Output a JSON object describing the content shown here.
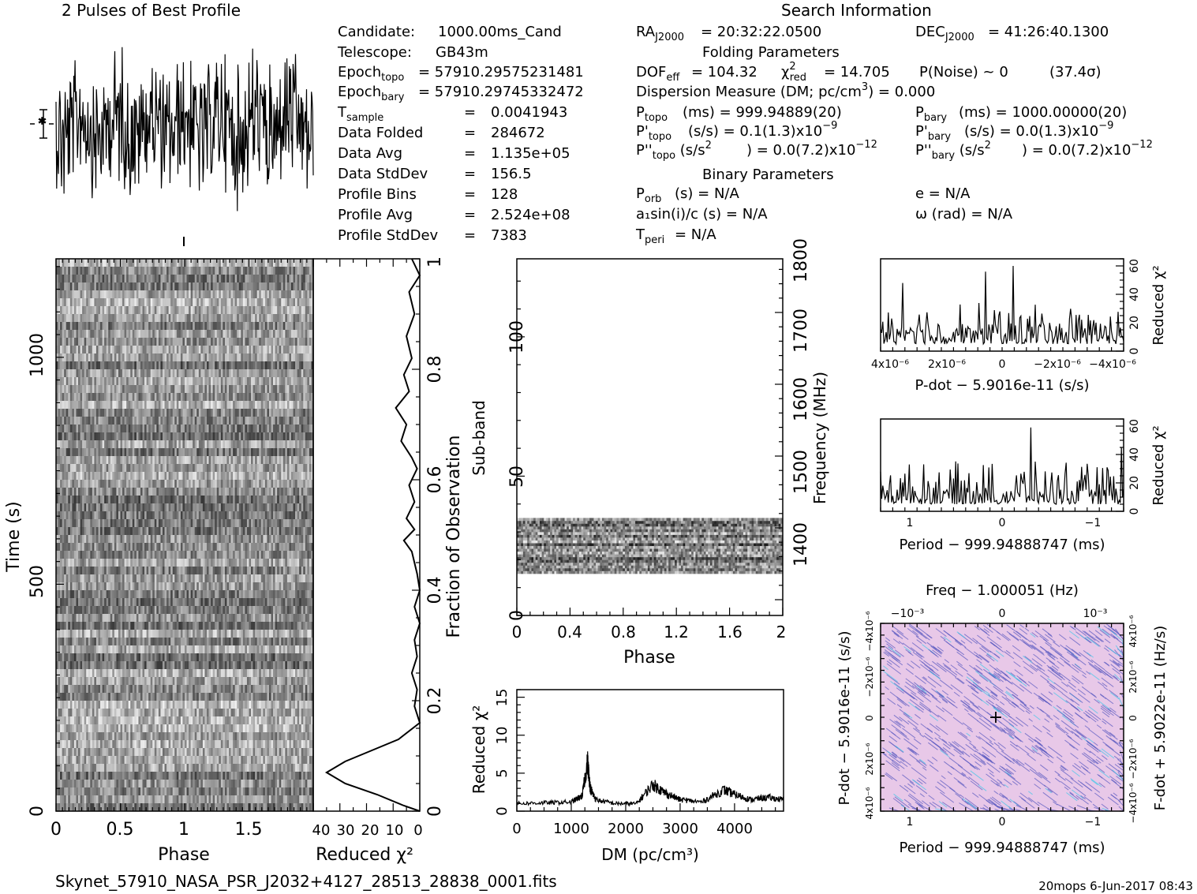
{
  "header": {
    "profile_title": "2 Pulses of Best Profile",
    "search_title": "Search Information",
    "folding_title": "Folding Parameters",
    "binary_title": "Binary Parameters"
  },
  "info_left": {
    "candidate_label": "Candidate:",
    "candidate": "1000.00ms_Cand",
    "telescope_label": "Telescope:",
    "telescope": "GB43m",
    "epoch_topo": "= 57910.29575231481",
    "epoch_bary": "= 57910.29745332472",
    "tsample": "0.0041943",
    "data_folded": "284672",
    "data_avg": "1.135e+05",
    "data_stddev": "156.5",
    "profile_bins": "128",
    "profile_avg": "2.524e+08",
    "profile_stddev": "7383",
    "lbl_data_folded": "Data Folded",
    "lbl_data_avg": "Data Avg",
    "lbl_data_stddev": "Data StdDev",
    "lbl_profile_bins": "Profile Bins",
    "lbl_profile_avg": "Profile Avg",
    "lbl_profile_stddev": "Profile StdDev"
  },
  "info_mid": {
    "ra": "= 20:32:22.0500",
    "dof": "= 104.32",
    "chi2red": "= 14.705",
    "pnoise": "P(Noise) ~ 0",
    "sigma": "(37.4σ)",
    "dm": "Dispersion Measure (DM; pc/cm",
    "dm_val": ") = 0.000",
    "ptopo": "(ms) =  999.94889(20)",
    "pdtopo": "(s/s) =  0.1(1.3)x10",
    "pdtopo_exp": "−9",
    "pddtopo": ") = 0.0(7.2)x10",
    "pddtopo_exp": "−12",
    "porb": "(s) = N/A",
    "a1sini": "a₁sin(i)/c (s) = N/A",
    "tperi": "= N/A"
  },
  "info_right": {
    "dec": "= 41:26:40.1300",
    "pbary": "(ms) =  1000.00000(20)",
    "pdbary": "(s/s) = 0.0(1.3)x10",
    "pdbary_exp": "−9",
    "pddbary": ") = 0.0(7.2)x10",
    "pddbary_exp": "−12",
    "ecc": "e = N/A",
    "omega": "ω (rad) = N/A"
  },
  "footer": {
    "filename": "Skynet_57910_NASA_PSR_J2032+4127_28513_28838_0001.fits",
    "stamp": "20mops  6-Jun-2017 08:43"
  },
  "chart_data": [
    {
      "type": "line",
      "name": "profile",
      "title": "2 Pulses of Best Profile",
      "note": "noisy folded profile over 2 pulses, no clear peak"
    },
    {
      "type": "heatmap",
      "name": "time_vs_phase",
      "xlabel": "Phase",
      "ylabel": "Time (s)",
      "xticks": [
        "0",
        "0.5",
        "1",
        "1.5"
      ],
      "yticks": [
        "0",
        "500",
        "1000"
      ],
      "xlim": [
        0,
        2
      ],
      "ylim": [
        0,
        1217
      ]
    },
    {
      "type": "line",
      "name": "time_reduced_chi2",
      "xlabel": "Reduced χ²",
      "ylabel": "Fraction of Observation",
      "xticks": [
        "40",
        "30",
        "20",
        "10",
        "0"
      ],
      "yticks": [
        "0",
        "0.2",
        "0.4",
        "0.6",
        "0.8",
        "1"
      ],
      "xlim": [
        40,
        0
      ],
      "ylim": [
        0,
        1
      ],
      "points": [
        [
          3,
          1.0
        ],
        [
          0,
          0.97
        ],
        [
          4,
          0.94
        ],
        [
          2,
          0.9
        ],
        [
          5,
          0.86
        ],
        [
          3,
          0.82
        ],
        [
          6,
          0.79
        ],
        [
          4,
          0.76
        ],
        [
          9,
          0.73
        ],
        [
          5,
          0.7
        ],
        [
          7,
          0.67
        ],
        [
          3,
          0.64
        ],
        [
          1,
          0.62
        ],
        [
          4,
          0.59
        ],
        [
          2,
          0.56
        ],
        [
          5,
          0.53
        ],
        [
          2,
          0.51
        ],
        [
          6,
          0.49
        ],
        [
          3,
          0.47
        ],
        [
          1,
          0.43
        ],
        [
          0,
          0.4
        ],
        [
          2,
          0.37
        ],
        [
          0,
          0.34
        ],
        [
          2,
          0.31
        ],
        [
          1,
          0.28
        ],
        [
          3,
          0.25
        ],
        [
          1,
          0.22
        ],
        [
          2,
          0.19
        ],
        [
          0,
          0.16
        ],
        [
          8,
          0.13
        ],
        [
          18,
          0.11
        ],
        [
          28,
          0.09
        ],
        [
          35,
          0.07
        ],
        [
          28,
          0.05
        ],
        [
          16,
          0.03
        ],
        [
          6,
          0.01
        ],
        [
          0,
          0
        ]
      ]
    },
    {
      "type": "heatmap",
      "name": "subband_vs_phase",
      "xlabel": "Phase",
      "ylabel": "Sub-band",
      "y2label": "Frequency (MHz)",
      "xticks": [
        "0",
        "0.4",
        "0.8",
        "1.2",
        "1.6",
        "2"
      ],
      "yticks": [
        "0",
        "50",
        "100"
      ],
      "y2ticks": [
        "1400",
        "1500",
        "1600",
        "1700",
        "1800"
      ],
      "xlim": [
        0,
        2
      ],
      "ylim": [
        0,
        128
      ],
      "filled_subbands": [
        15,
        35
      ]
    },
    {
      "type": "line",
      "name": "dm_reduced_chi2",
      "xlabel": "DM (pc/cm³)",
      "ylabel": "Reduced χ²",
      "xticks": [
        "0",
        "1000",
        "2000",
        "3000",
        "4000"
      ],
      "yticks": [
        "0",
        "5",
        "10",
        "15"
      ],
      "xlim": [
        0,
        4900
      ],
      "ylim": [
        0,
        16
      ],
      "points": [
        [
          0,
          1
        ],
        [
          500,
          1.1
        ],
        [
          1000,
          1.2
        ],
        [
          1200,
          2
        ],
        [
          1300,
          6.5
        ],
        [
          1350,
          3
        ],
        [
          1450,
          1.5
        ],
        [
          1800,
          1
        ],
        [
          2200,
          1
        ],
        [
          2500,
          3.5
        ],
        [
          2700,
          2.5
        ],
        [
          3000,
          1.5
        ],
        [
          3400,
          1.2
        ],
        [
          3800,
          2.8
        ],
        [
          4000,
          2.2
        ],
        [
          4300,
          1.5
        ],
        [
          4600,
          1.8
        ],
        [
          4900,
          1.5
        ]
      ]
    },
    {
      "type": "line",
      "name": "pdot_reduced_chi2",
      "xlabel": "P-dot − 5.9016e-11 (s/s)",
      "ylabel": "Reduced χ²",
      "xticks": [
        "4x10⁻⁶",
        "2x10⁻⁶",
        "0",
        "−2x10⁻⁶",
        "−4x10⁻⁶"
      ],
      "yticks": [
        "0",
        "20",
        "40",
        "60"
      ],
      "ylim": [
        0,
        65
      ]
    },
    {
      "type": "line",
      "name": "period_reduced_chi2",
      "xlabel": "Period − 999.94888747 (ms)",
      "ylabel": "Reduced χ²",
      "xticks": [
        "1",
        "0",
        "−1"
      ],
      "yticks": [
        "0",
        "20",
        "40",
        "60"
      ],
      "ylim": [
        0,
        65
      ]
    },
    {
      "type": "heatmap",
      "name": "period_pdot_plane",
      "title": "Freq − 1.000051 (Hz)",
      "xlabel": "Period − 999.94888747 (ms)",
      "ylabel": "P-dot − 5.9016e-11 (s/s)",
      "y2label": "F-dot + 5.9022e-11 (Hz/s)",
      "xticks": [
        "1",
        "0",
        "−1"
      ],
      "x2ticks": [
        "−10⁻³",
        "0",
        "10⁻³"
      ],
      "yticks": [
        "4x10⁻⁶",
        "2x10⁻⁶",
        "0",
        "−2x10⁻⁶",
        "−4x10⁻⁶"
      ],
      "y2ticks": [
        "−4x10⁻⁶",
        "−2x10⁻⁶",
        "0",
        "2x10⁻⁶",
        "4x10⁻⁶"
      ],
      "colors": {
        "base": "#e8c8e8",
        "mid": "#5858c0",
        "hot": "#40c8e8"
      }
    }
  ]
}
